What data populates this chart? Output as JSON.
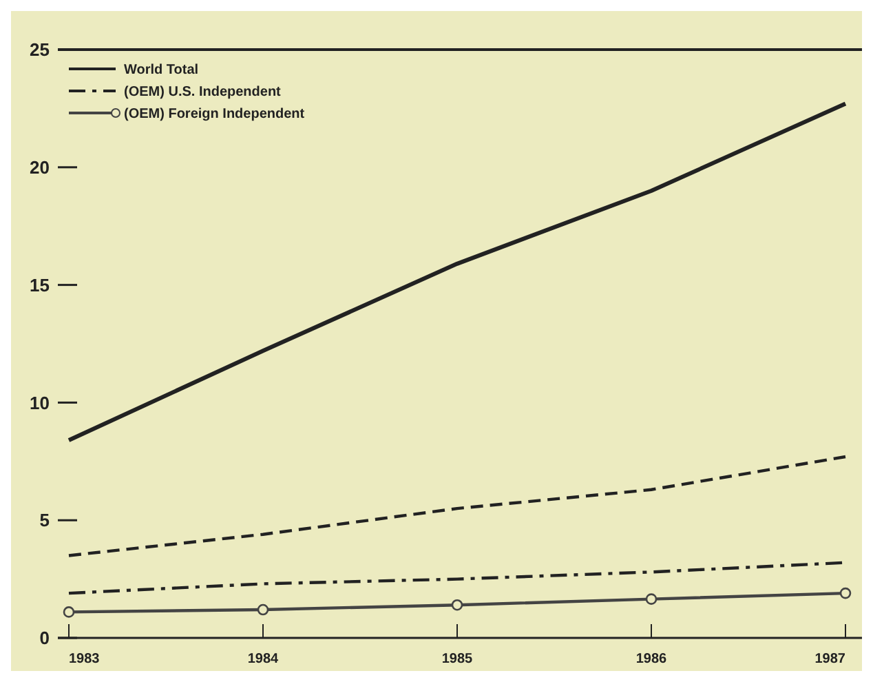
{
  "chart_data": {
    "type": "line",
    "categories": [
      "1983",
      "1984",
      "1985",
      "1986",
      "1987"
    ],
    "series": [
      {
        "name": "World Total",
        "color": "#222222",
        "line_style": "solid",
        "marker": "none",
        "values": [
          8.4,
          12.2,
          15.9,
          19.0,
          22.7
        ]
      },
      {
        "color": "#222222",
        "line_style": "dashed",
        "marker": "none",
        "values": [
          3.5,
          4.4,
          5.5,
          6.3,
          7.7
        ]
      },
      {
        "name": "(OEM) U.S. Independent",
        "color": "#222222",
        "line_style": "dashdot",
        "marker": "none",
        "values": [
          1.9,
          2.3,
          2.5,
          2.8,
          3.2
        ]
      },
      {
        "name": "(OEM) Foreign Independent",
        "color": "#444444",
        "line_style": "solid",
        "marker": "circle",
        "values": [
          1.1,
          1.2,
          1.4,
          1.65,
          1.9
        ]
      }
    ],
    "ylim": [
      0,
      25
    ],
    "yticks": [
      0,
      5,
      10,
      15,
      20,
      25
    ],
    "grid": false,
    "legend": "top left"
  }
}
